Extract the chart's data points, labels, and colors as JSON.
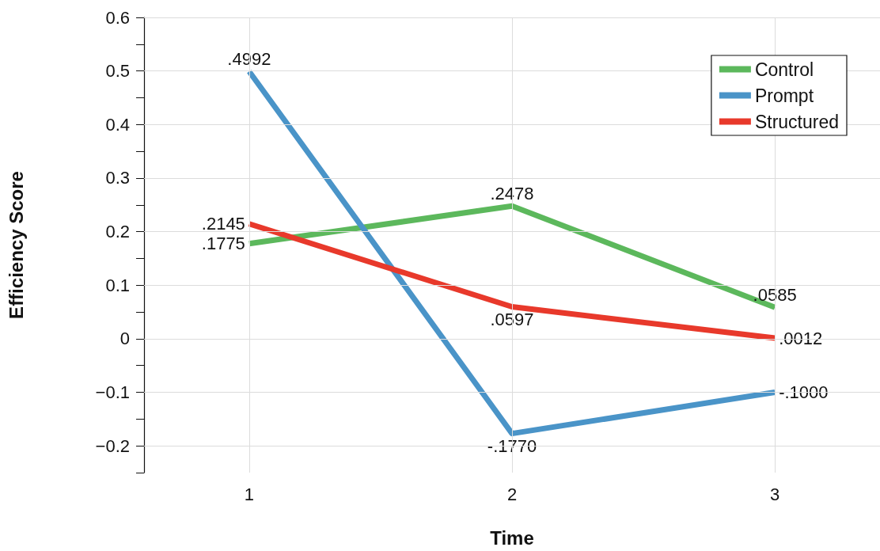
{
  "chart_data": {
    "type": "line",
    "xlabel": "Time",
    "ylabel": "Efficiency Score",
    "x": [
      1,
      2,
      3
    ],
    "series": [
      {
        "name": "Control",
        "color": "#5cb85c",
        "values": [
          0.1775,
          0.2478,
          0.0585
        ],
        "value_labels": [
          ".1775",
          ".2478",
          ".0585"
        ]
      },
      {
        "name": "Prompt",
        "color": "#4a94c8",
        "values": [
          0.4992,
          -0.177,
          -0.1
        ],
        "value_labels": [
          ".4992",
          "-.1770",
          "-.1000"
        ]
      },
      {
        "name": "Structured",
        "color": "#e8392b",
        "values": [
          0.2145,
          0.0597,
          0.0012
        ],
        "value_labels": [
          ".2145",
          ".0597",
          ".0012"
        ]
      }
    ],
    "xlim": [
      0.6,
      3.4
    ],
    "xticks": [
      1,
      2,
      3
    ],
    "ylim": [
      -0.25,
      0.6
    ],
    "yticks": [
      {
        "value": -0.25,
        "label": null
      },
      {
        "value": -0.2,
        "label": "−0.2"
      },
      {
        "value": -0.15,
        "label": null
      },
      {
        "value": -0.1,
        "label": "−0.1"
      },
      {
        "value": -0.05,
        "label": null
      },
      0,
      {
        "value": 0.05,
        "label": null
      },
      0.1,
      {
        "value": 0.15,
        "label": null
      },
      0.2,
      {
        "value": 0.25,
        "label": null
      },
      0.3,
      {
        "value": 0.35,
        "label": null
      },
      0.4,
      {
        "value": 0.45,
        "label": null
      },
      0.5,
      {
        "value": 0.55,
        "label": null
      },
      0.6
    ],
    "grid": true,
    "legend": "top right",
    "marker": "none",
    "line_style": "solid"
  }
}
